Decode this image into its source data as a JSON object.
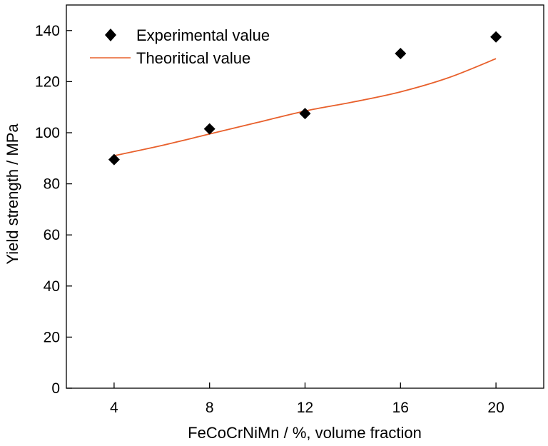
{
  "chart_data": {
    "type": "scatter",
    "title": "",
    "xlabel": "FeCoCrNiMn / %, volume fraction",
    "ylabel": "Yield strength / MPa",
    "xlim": [
      2,
      22
    ],
    "ylim": [
      0,
      150
    ],
    "xticks": [
      4,
      8,
      12,
      16,
      20
    ],
    "yticks": [
      0,
      20,
      40,
      60,
      80,
      100,
      120,
      140
    ],
    "xtick_labels": [
      "4",
      "8",
      "12",
      "16",
      "20"
    ],
    "ytick_labels": [
      "0",
      "20",
      "40",
      "60",
      "80",
      "100",
      "120",
      "140"
    ],
    "grid": false,
    "legend_position": "top-left",
    "series": [
      {
        "name": "Experimental value",
        "kind": "scatter",
        "marker": "diamond",
        "color": "#000000",
        "x": [
          4,
          8,
          12,
          16,
          20
        ],
        "y": [
          89.5,
          101.5,
          107.5,
          131,
          137.5
        ]
      },
      {
        "name": "Theoritical value",
        "kind": "line",
        "color": "#e8602c",
        "x": [
          4,
          6,
          8,
          10,
          12,
          14,
          16,
          18,
          20
        ],
        "y": [
          91,
          95,
          99.5,
          104,
          108.5,
          112,
          116,
          121.5,
          129
        ]
      }
    ]
  }
}
